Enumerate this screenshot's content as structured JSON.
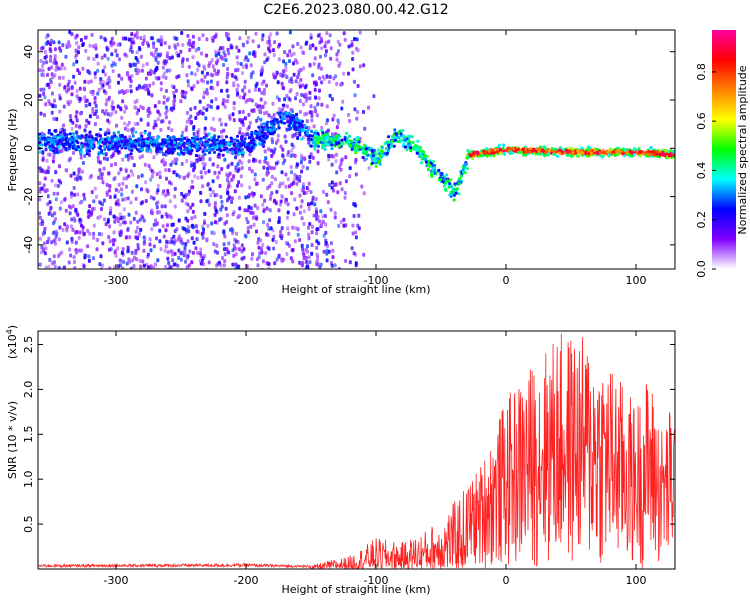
{
  "title": "C2E6.2023.080.00.42.G12",
  "chart_data": [
    {
      "type": "heatmap",
      "xlabel": "Height of straight line (km)",
      "ylabel": "Frequency (Hz)",
      "xlim": [
        -360,
        130
      ],
      "ylim": [
        -50,
        49
      ],
      "x_ticks": [
        -300,
        -200,
        -100,
        0,
        100
      ],
      "y_ticks": [
        -40,
        -20,
        0,
        20,
        40
      ],
      "colorbar": {
        "label": "Normalized spectral amplitude",
        "range": [
          0,
          0.97
        ],
        "ticks": [
          0.0,
          0.2,
          0.4,
          0.6,
          0.8
        ],
        "colors": [
          "#ffffff",
          "#8000ff",
          "#0000ff",
          "#00ffff",
          "#00ff00",
          "#ffff00",
          "#ff8000",
          "#ff0000",
          "#ff00a0"
        ]
      },
      "ridge": [
        {
          "x": -360,
          "y": 3
        },
        {
          "x": -300,
          "y": 3
        },
        {
          "x": -250,
          "y": 2
        },
        {
          "x": -200,
          "y": 2
        },
        {
          "x": -170,
          "y": 14
        },
        {
          "x": -150,
          "y": 5
        },
        {
          "x": -120,
          "y": 3
        },
        {
          "x": -100,
          "y": -4
        },
        {
          "x": -85,
          "y": 6
        },
        {
          "x": -70,
          "y": 1
        },
        {
          "x": -50,
          "y": -12
        },
        {
          "x": -40,
          "y": -18
        },
        {
          "x": -30,
          "y": -2
        },
        {
          "x": 0,
          "y": 0
        },
        {
          "x": 50,
          "y": -1
        },
        {
          "x": 100,
          "y": -1
        },
        {
          "x": 130,
          "y": -2
        }
      ]
    },
    {
      "type": "line",
      "xlabel": "Height of straight line (km)",
      "ylabel": "SNR (10 * v/v)",
      "y_multiplier": "(x10",
      "y_multiplier_exp": "4",
      "y_multiplier_close": ")",
      "xlim": [
        -360,
        130
      ],
      "ylim": [
        0,
        2.65
      ],
      "x_ticks": [
        -300,
        -200,
        -100,
        0,
        100
      ],
      "y_ticks": [
        0.5,
        1.0,
        1.5,
        2.0,
        2.5
      ],
      "line_color": "#ff2020",
      "envelope": [
        {
          "x": -360,
          "y": 0.05
        },
        {
          "x": -200,
          "y": 0.06
        },
        {
          "x": -150,
          "y": 0.04
        },
        {
          "x": -120,
          "y": 0.15
        },
        {
          "x": -100,
          "y": 0.35
        },
        {
          "x": -80,
          "y": 0.3
        },
        {
          "x": -60,
          "y": 0.45
        },
        {
          "x": -40,
          "y": 0.75
        },
        {
          "x": -20,
          "y": 1.15
        },
        {
          "x": 0,
          "y": 1.9
        },
        {
          "x": 20,
          "y": 2.3
        },
        {
          "x": 40,
          "y": 2.65
        },
        {
          "x": 60,
          "y": 2.6
        },
        {
          "x": 80,
          "y": 2.3
        },
        {
          "x": 100,
          "y": 1.85
        },
        {
          "x": 110,
          "y": 2.2
        },
        {
          "x": 120,
          "y": 1.6
        },
        {
          "x": 130,
          "y": 1.95
        }
      ]
    }
  ]
}
